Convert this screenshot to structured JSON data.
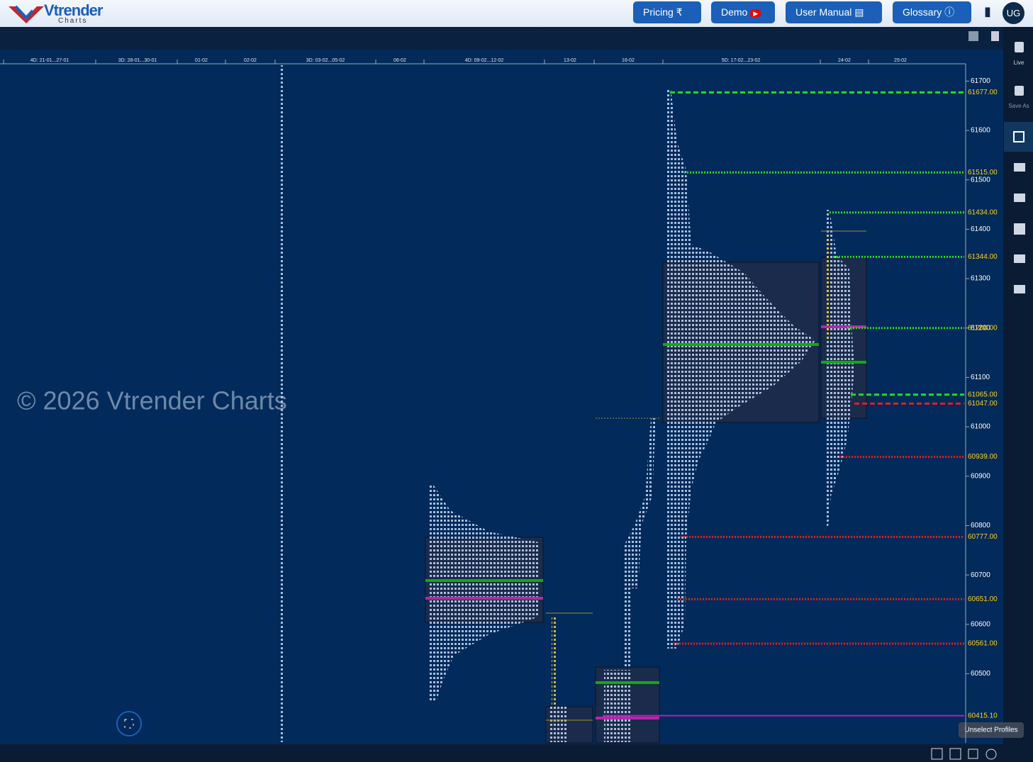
{
  "header": {
    "logo": "Vtrender",
    "logo_sub": "Charts",
    "buttons": [
      "Pricing",
      "Demo",
      "User Manual",
      "Glossary"
    ],
    "user": "UG"
  },
  "sidebar": {
    "items": [
      "Live",
      "Save As"
    ]
  },
  "watermark": "© 2026 Vtrender Charts",
  "tooltip": "Unselect Profiles",
  "dates": [
    "4D: 21-01...27-01",
    "3D: 28-01...30-01",
    "01-02",
    "02-02",
    "3D: 03-02...05-02",
    "06-02",
    "4D: 09-02...12-02",
    "13-02",
    "16-02",
    "5D: 17-02...23-02",
    "24-02",
    "25-02"
  ],
  "price_axis": {
    "ylim": [
      60360,
      61735
    ],
    "yticks": [
      61700,
      61600,
      61500,
      61400,
      61300,
      61200,
      61100,
      61000,
      60900,
      60800,
      60700,
      60600,
      60500
    ]
  },
  "levels": [
    {
      "value": 61677,
      "label": "61677.00",
      "color": "#22dd22",
      "style": "dashed"
    },
    {
      "value": 61515,
      "label": "61515.00",
      "color": "#22dd22",
      "style": "dotted"
    },
    {
      "value": 61434,
      "label": "61434.00",
      "color": "#22dd22",
      "style": "dotted"
    },
    {
      "value": 61344,
      "label": "61344.00",
      "color": "#22dd22",
      "style": "dotted"
    },
    {
      "value": 61200,
      "label": "61200.00",
      "color": "#22dd22",
      "style": "dotted"
    },
    {
      "value": 61065,
      "label": "61065.00",
      "color": "#22dd22",
      "style": "dashed"
    },
    {
      "value": 61047,
      "label": "61047.00",
      "color": "#e02020",
      "style": "dashed"
    },
    {
      "value": 60939,
      "label": "60939.00",
      "color": "#e02020",
      "style": "dotted"
    },
    {
      "value": 60777,
      "label": "60777.00",
      "color": "#e02020",
      "style": "dotted"
    },
    {
      "value": 60651,
      "label": "60651.00",
      "color": "#e02020",
      "style": "dotted"
    },
    {
      "value": 60561,
      "label": "60561.00",
      "color": "#e02020",
      "style": "dotted"
    },
    {
      "value": 60415.1,
      "label": "60415.10",
      "color": "#b020c0",
      "style": "solid"
    }
  ]
}
